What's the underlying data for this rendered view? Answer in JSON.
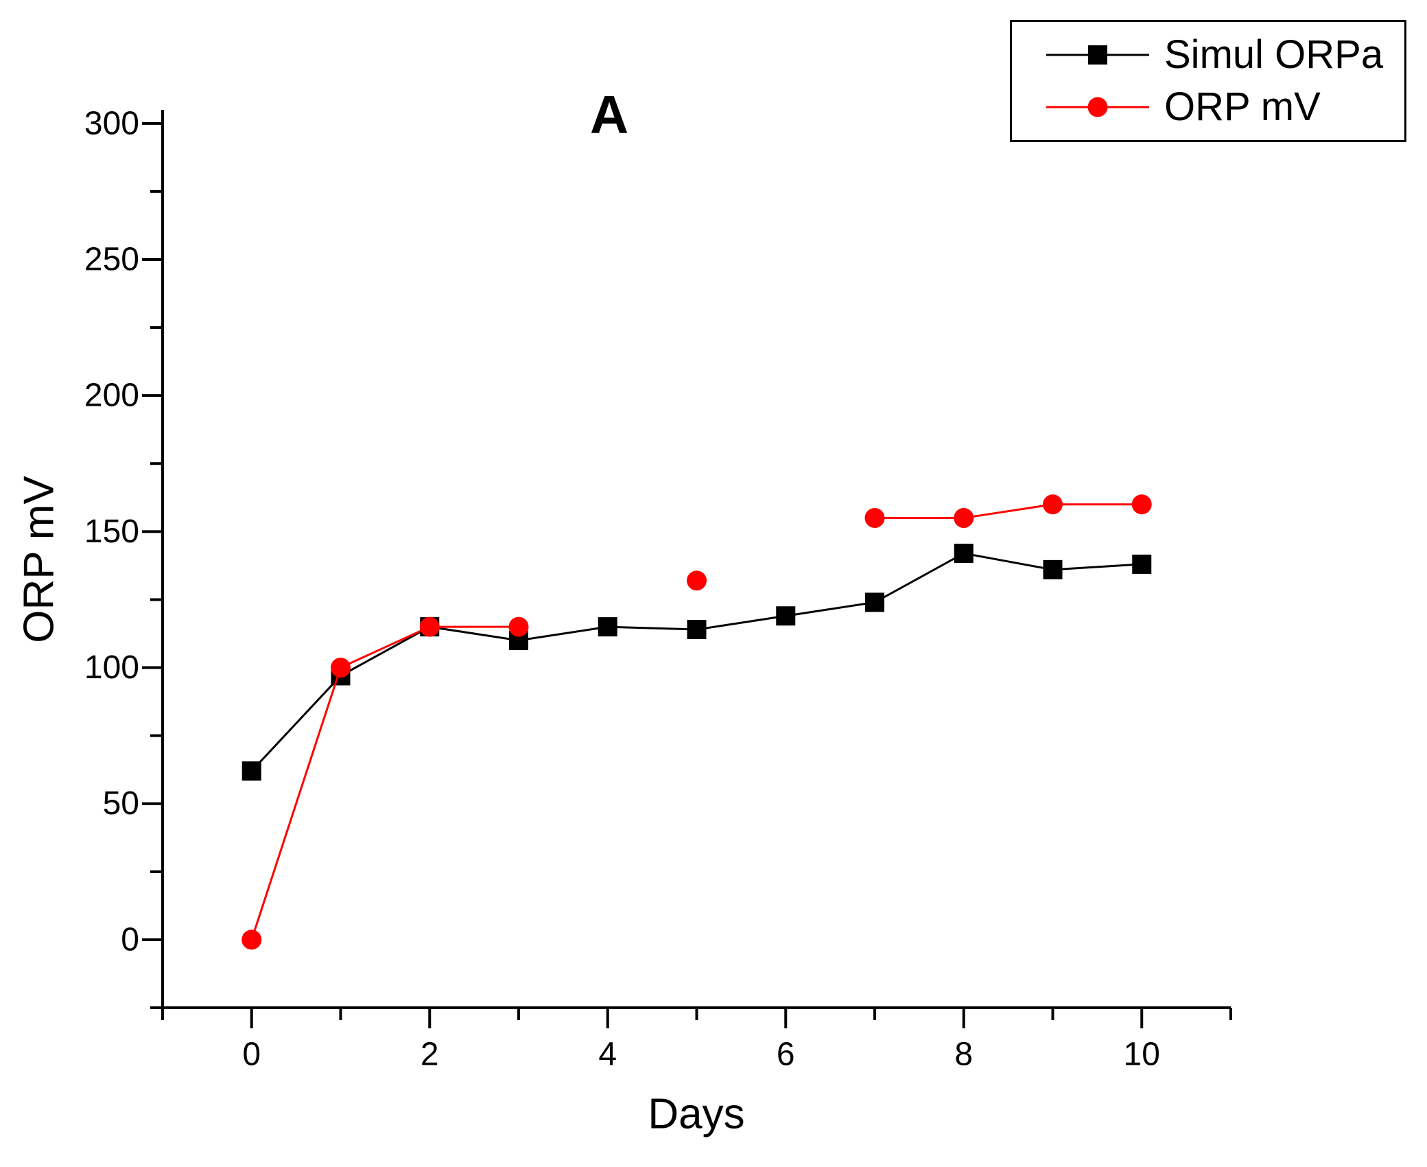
{
  "figure": {
    "title": "A"
  },
  "axes": {
    "x_label": "Days",
    "y_label": "ORP mV"
  },
  "legend": {
    "entries": [
      {
        "label": "Simul ORPa",
        "color": "#000000",
        "marker": "square"
      },
      {
        "label": "ORP mV",
        "color": "#FF0000",
        "marker": "circle"
      }
    ]
  },
  "chart_data": {
    "type": "line",
    "title": "A",
    "xlabel": "Days",
    "ylabel": "ORP mV",
    "xlim": [
      -1,
      11
    ],
    "ylim": [
      -25,
      305
    ],
    "x_major_ticks": [
      0,
      2,
      4,
      6,
      8,
      10
    ],
    "x_minor_ticks": [
      -1,
      1,
      3,
      5,
      7,
      9,
      11
    ],
    "y_major_ticks": [
      0,
      50,
      100,
      150,
      200,
      250,
      300
    ],
    "y_minor_ticks": [
      -25,
      25,
      75,
      125,
      175,
      225,
      275
    ],
    "grid": false,
    "legend_position": "top-right",
    "series": [
      {
        "name": "Simul ORPa",
        "color": "#000000",
        "marker": "square",
        "x": [
          0,
          1,
          2,
          3,
          4,
          5,
          6,
          7,
          8,
          9,
          10
        ],
        "y": [
          62,
          97,
          115,
          110,
          115,
          114,
          119,
          124,
          142,
          136,
          138
        ],
        "segments": [
          [
            0,
            1,
            2,
            3,
            4,
            5,
            6,
            7,
            8,
            9,
            10
          ]
        ]
      },
      {
        "name": "ORP mV",
        "color": "#FF0000",
        "marker": "circle",
        "x": [
          0,
          1,
          2,
          3,
          5,
          7,
          8,
          9,
          10
        ],
        "y": [
          0,
          100,
          115,
          115,
          132,
          155,
          155,
          160,
          160
        ],
        "segments": [
          [
            0,
            1,
            2,
            3
          ],
          [
            5,
            6,
            7,
            8
          ]
        ]
      }
    ]
  }
}
